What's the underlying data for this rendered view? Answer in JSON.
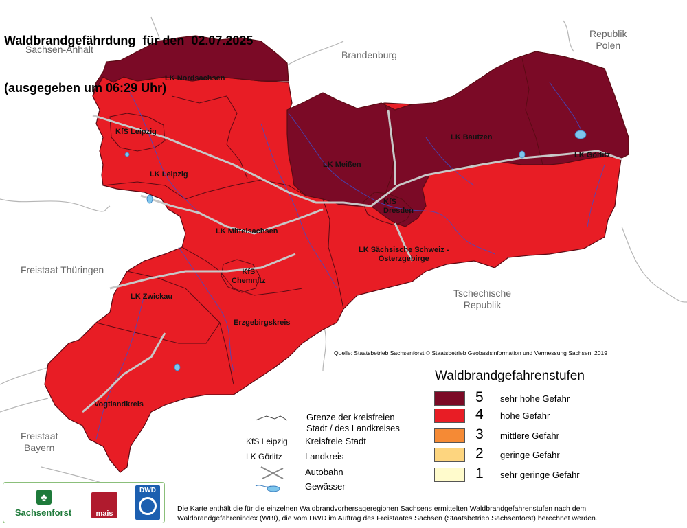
{
  "title": {
    "line1": "Waldbrandgefährdung  für den  02.07.2025",
    "line2": "(ausgegeben um 06:29 Uhr)"
  },
  "neighbors": {
    "sachsen_anhalt": "Sachsen-Anhalt",
    "brandenburg": "Brandenburg",
    "polen": "Republik\nPolen",
    "thueringen": "Freistaat Thüringen",
    "tschechien": "Tschechische\nRepublik",
    "bayern": "Freistaat\nBayern"
  },
  "districts": [
    {
      "label": "LK Nordsachsen",
      "level": 5
    },
    {
      "label": "KfS Leipzig",
      "level": 4
    },
    {
      "label": "LK Leipzig",
      "level": 4
    },
    {
      "label": "LK Meißen",
      "level": 5
    },
    {
      "label": "LK Bautzen",
      "level": 5
    },
    {
      "label": "LK Görlitz",
      "level": 5
    },
    {
      "label": "KfS\nDresden",
      "level": 5
    },
    {
      "label": "LK Mittelsachsen",
      "level": 4
    },
    {
      "label": "LK Sächsische Schweiz -\nOsterzgebirge",
      "level": 4
    },
    {
      "label": "KfS\nChemnitz",
      "level": 4
    },
    {
      "label": "LK Zwickau",
      "level": 4
    },
    {
      "label": "Erzgebirgskreis",
      "level": 4
    },
    {
      "label": "Vogtlandkreis",
      "level": 4
    }
  ],
  "source": "Quelle: Staatsbetrieb Sachsenforst  © Staatsbetrieb Geobasisinformation und Vermessung Sachsen, 2019",
  "legend": {
    "title": "Waldbrandgefahrenstufen",
    "items": [
      {
        "num": "5",
        "label": "sehr hohe Gefahr",
        "color": "#7b0a26"
      },
      {
        "num": "4",
        "label": "hohe Gefahr",
        "color": "#e81d25"
      },
      {
        "num": "3",
        "label": "mittlere Gefahr",
        "color": "#f58a35"
      },
      {
        "num": "2",
        "label": "geringe Gefahr",
        "color": "#fdd57f"
      },
      {
        "num": "1",
        "label": "sehr geringe Gefahr",
        "color": "#fffbcc"
      }
    ]
  },
  "key": {
    "boundary": "Grenze der kreisfreien\nStadt / des Landkreises",
    "kfs_example": "KfS Leipzig",
    "kfs_text": "Kreisfreie Stadt",
    "lk_example": "LK Görlitz",
    "lk_text": "Landkreis",
    "autobahn": "Autobahn",
    "gewaesser": "Gewässer"
  },
  "logos": {
    "sachsenforst": "Sachsenforst",
    "mais": "mais",
    "dwd": "DWD"
  },
  "note": "Die Karte enthält die für die einzelnen Waldbrandvorhersageregionen Sachsens ermittelten Waldbrandgefahrenstufen nach dem\nWaldbrandgefahrenindex (WBI), die vom DWD im Auftrag des Freistaates Sachsen (Staatsbetrieb Sachsenforst) berechnet werden.",
  "colors": {
    "level5": "#7b0a26",
    "level4": "#e81d25",
    "border": "#5a0a14",
    "water": "#4aa8e0",
    "road": "#c8c8c8",
    "neighbor_line": "#b5b5b5"
  }
}
